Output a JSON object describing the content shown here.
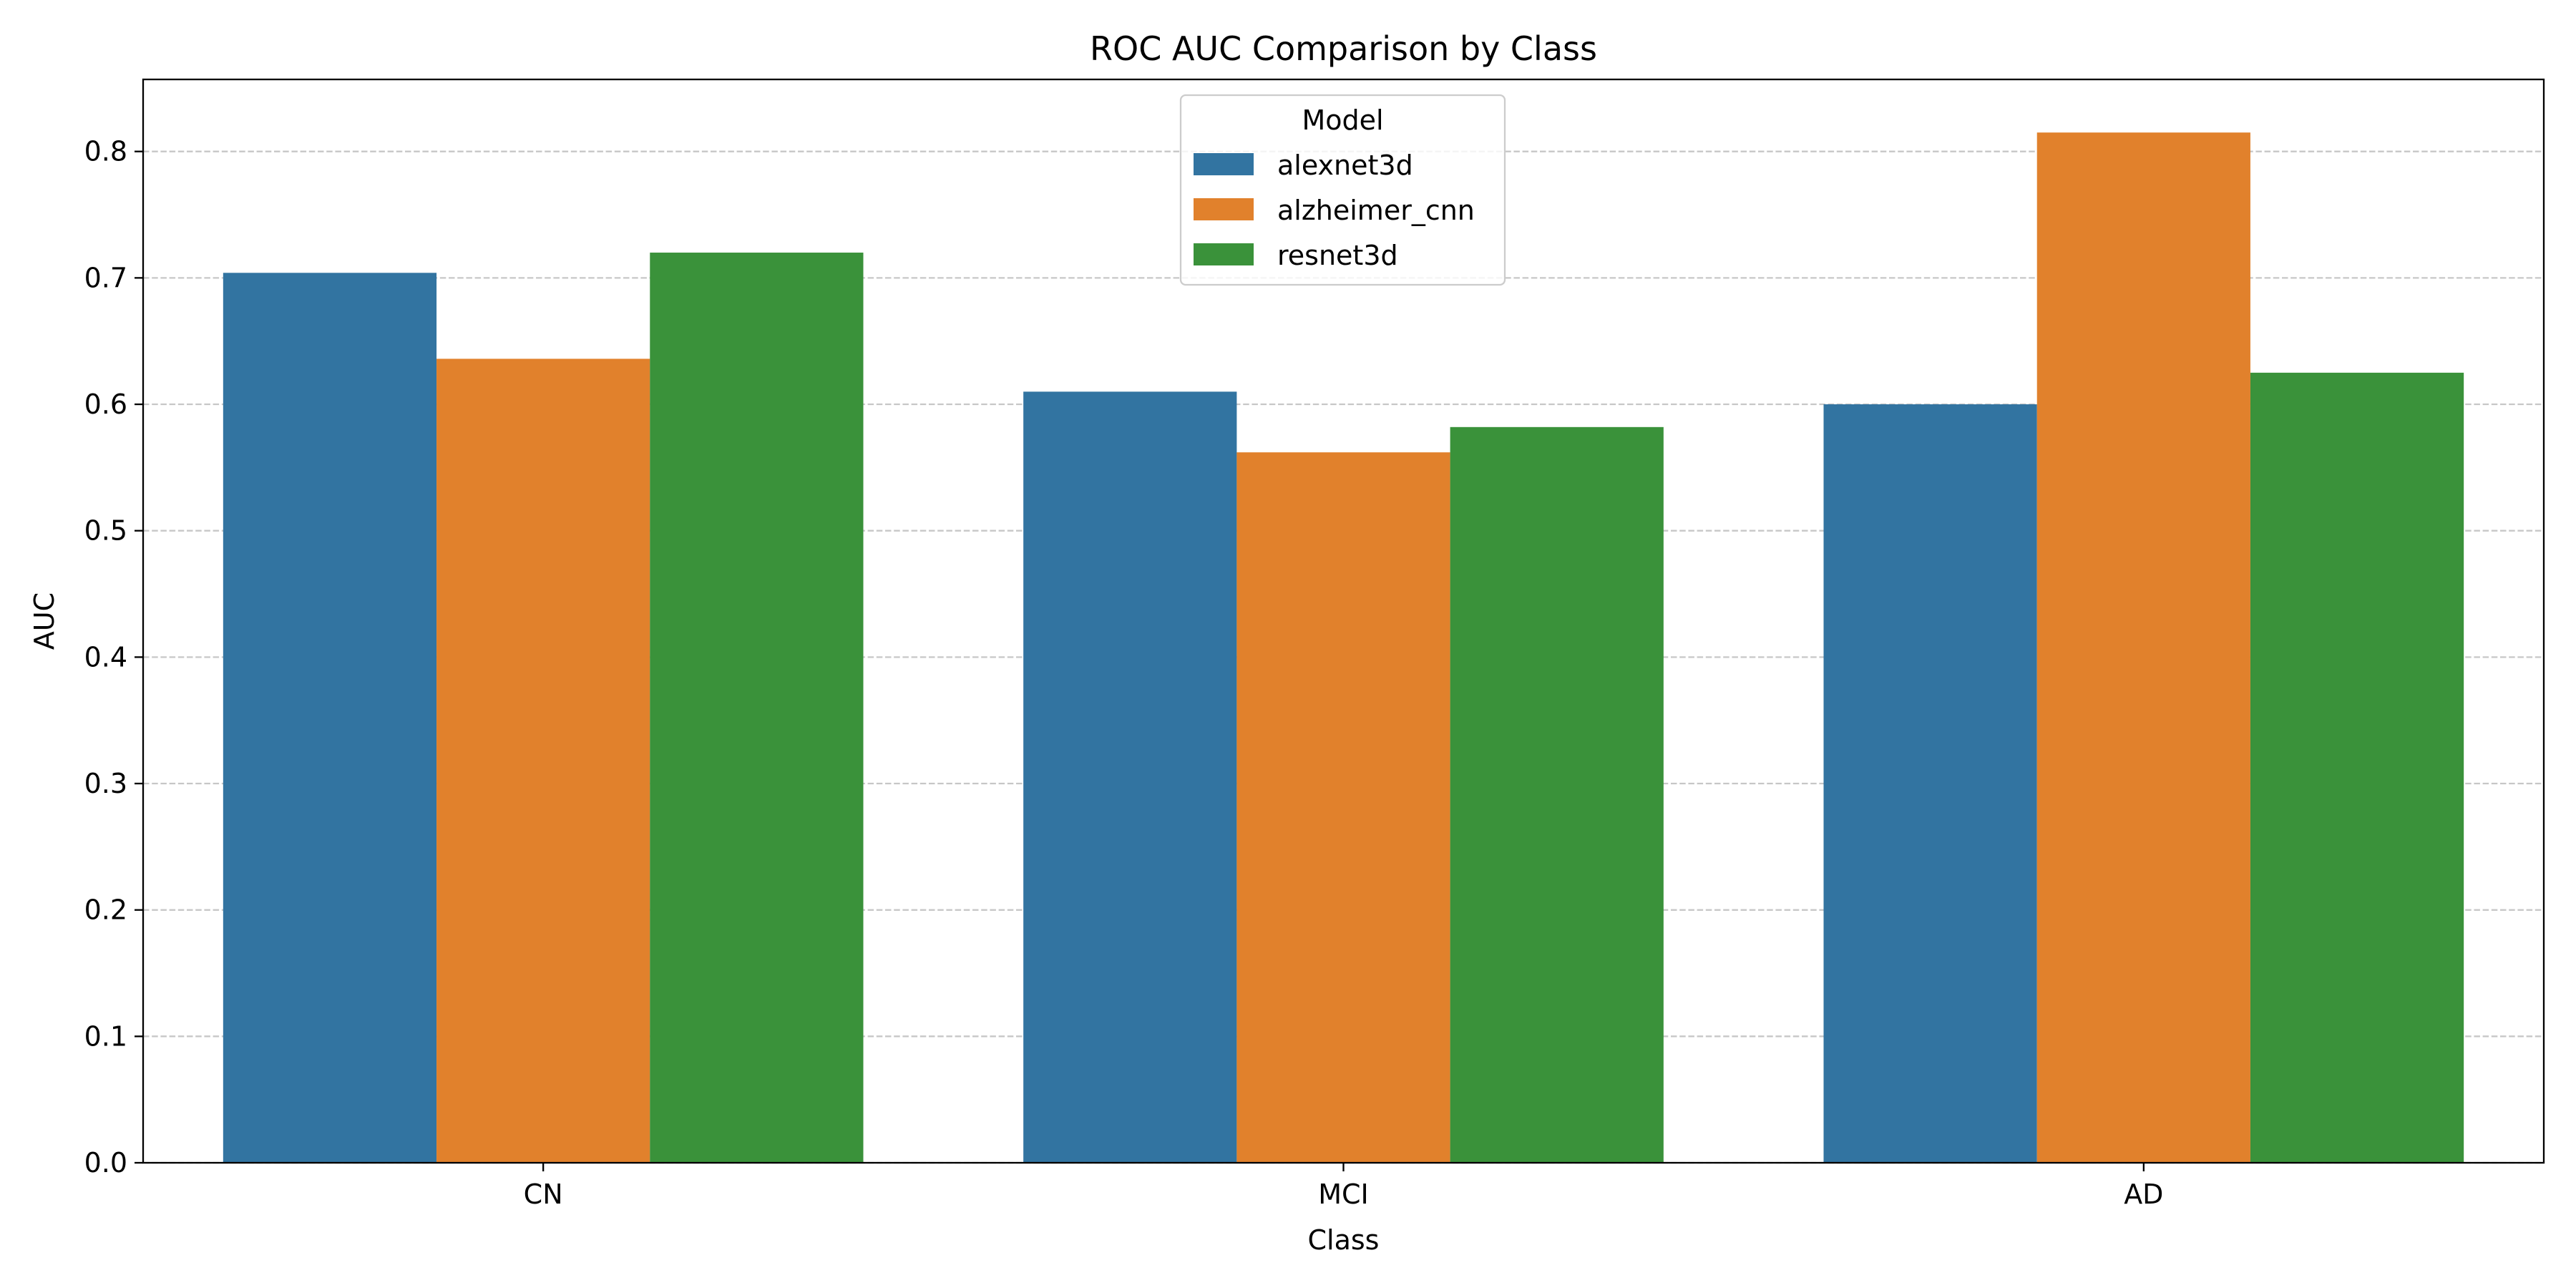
{
  "chart_data": {
    "type": "bar",
    "title": "ROC AUC Comparison by Class",
    "xlabel": "Class",
    "ylabel": "AUC",
    "categories": [
      "CN",
      "MCI",
      "AD"
    ],
    "series": [
      {
        "name": "alexnet3d",
        "color": "#3274a1",
        "values": [
          0.704,
          0.61,
          0.6
        ]
      },
      {
        "name": "alzheimer_cnn",
        "color": "#e1812c",
        "values": [
          0.636,
          0.562,
          0.815
        ]
      },
      {
        "name": "resnet3d",
        "color": "#3a923a",
        "values": [
          0.72,
          0.582,
          0.625
        ]
      }
    ],
    "ylim": [
      0,
      0.857
    ],
    "yticks": [
      "0.0",
      "0.1",
      "0.2",
      "0.3",
      "0.4",
      "0.5",
      "0.6",
      "0.7",
      "0.8"
    ],
    "grid": "y-dashed",
    "legend": {
      "title": "Model",
      "placement": "top-center"
    }
  }
}
